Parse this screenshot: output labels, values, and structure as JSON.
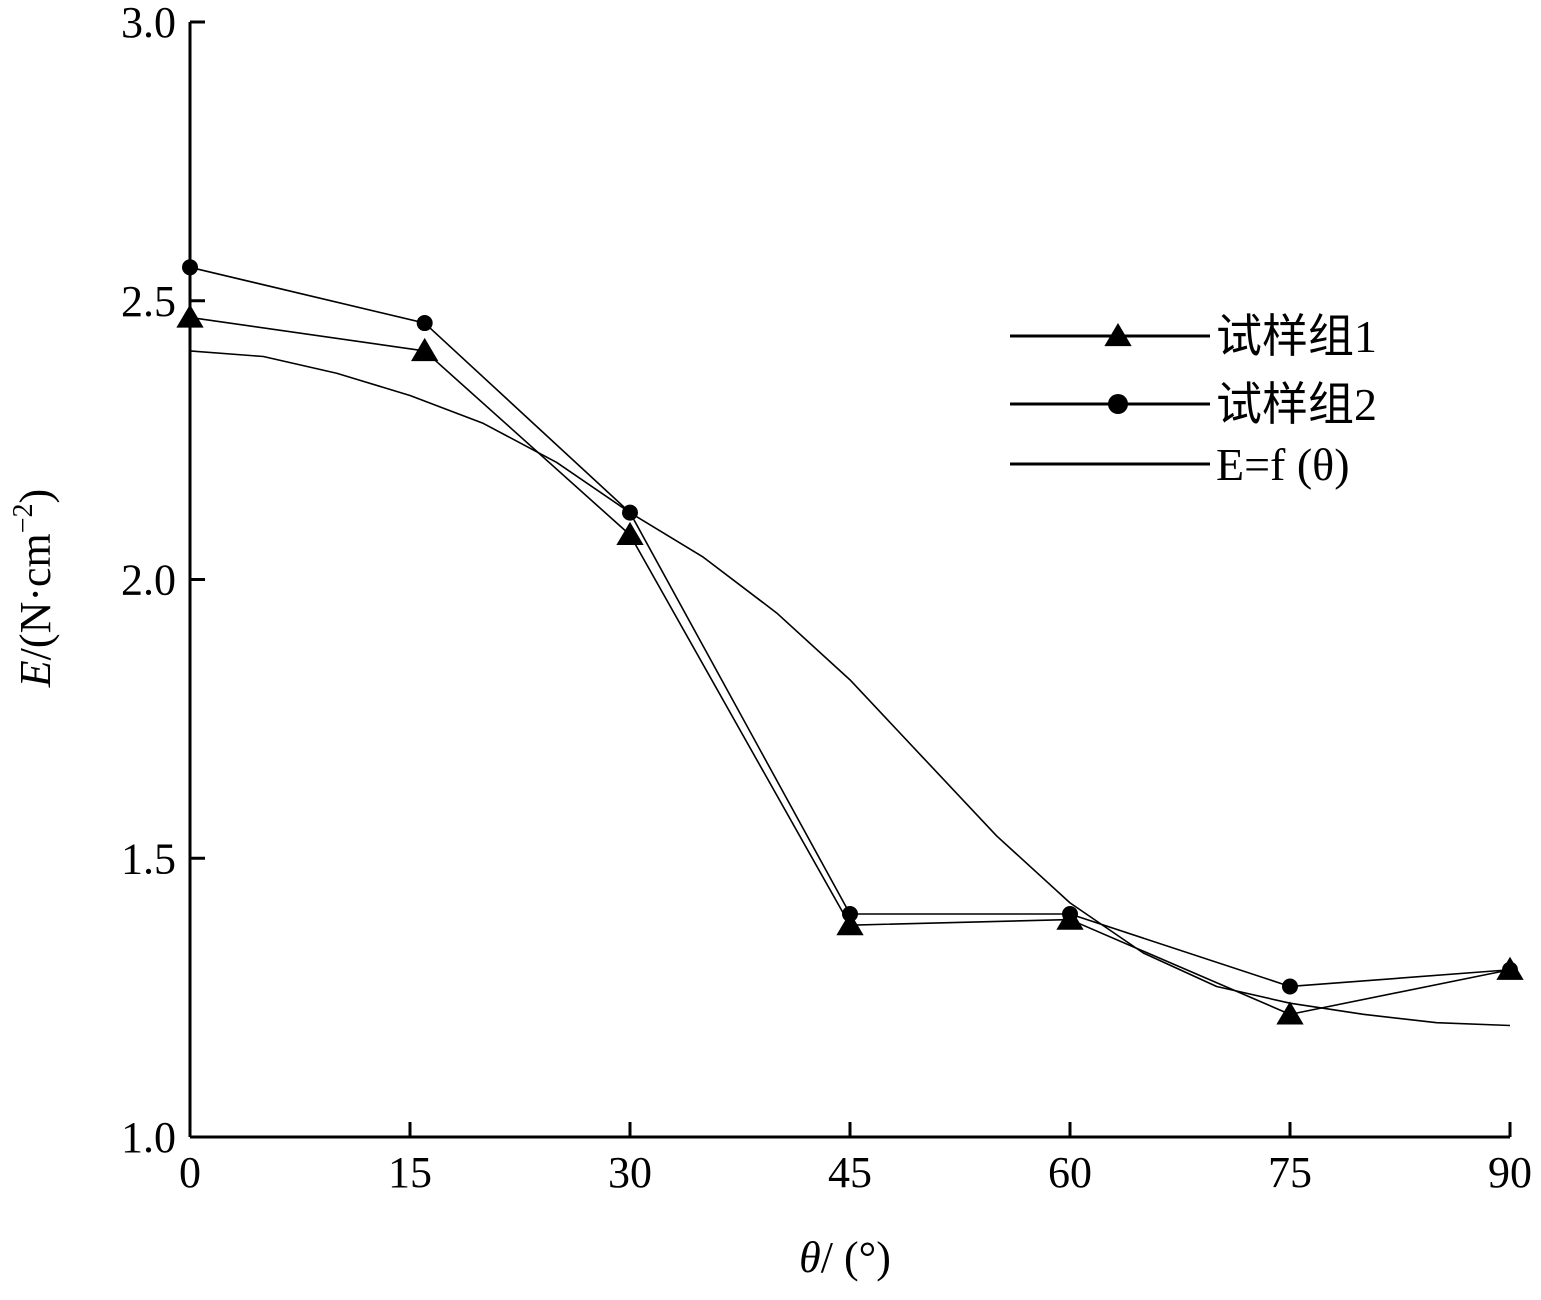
{
  "chart_data": {
    "type": "line",
    "x_ticks": [
      "0",
      "15",
      "30",
      "45",
      "60",
      "75",
      "90"
    ],
    "y_ticks": [
      "1.0",
      "1.5",
      "2.0",
      "2.5",
      "3.0"
    ],
    "xlim": [
      0,
      90
    ],
    "ylim": [
      1.0,
      3.0
    ],
    "grid": false,
    "legend_position": "top-right",
    "xlabel": {
      "symbol": "θ",
      "rest": "/ (°)"
    },
    "ylabel": {
      "symbol": "E",
      "rest": "/(N·cm",
      "sup": "−2",
      "close": ")"
    },
    "series": [
      {
        "name": "试样组1",
        "marker": "triangle",
        "x": [
          0,
          16,
          30,
          45,
          60,
          75,
          90
        ],
        "y": [
          2.47,
          2.41,
          2.08,
          1.38,
          1.39,
          1.22,
          1.3
        ]
      },
      {
        "name": "试样组2",
        "marker": "circle",
        "x": [
          0,
          16,
          30,
          45,
          60,
          75,
          90
        ],
        "y": [
          2.56,
          2.46,
          2.12,
          1.4,
          1.4,
          1.27,
          1.3
        ]
      },
      {
        "name": "E=f (θ)",
        "marker": "none",
        "x": [
          0,
          5,
          10,
          15,
          20,
          25,
          30,
          35,
          40,
          45,
          50,
          55,
          60,
          65,
          70,
          75,
          80,
          85,
          90
        ],
        "y": [
          2.41,
          2.4,
          2.37,
          2.33,
          2.28,
          2.21,
          2.12,
          2.04,
          1.94,
          1.82,
          1.68,
          1.54,
          1.42,
          1.33,
          1.27,
          1.24,
          1.22,
          1.205,
          1.2
        ]
      }
    ]
  }
}
